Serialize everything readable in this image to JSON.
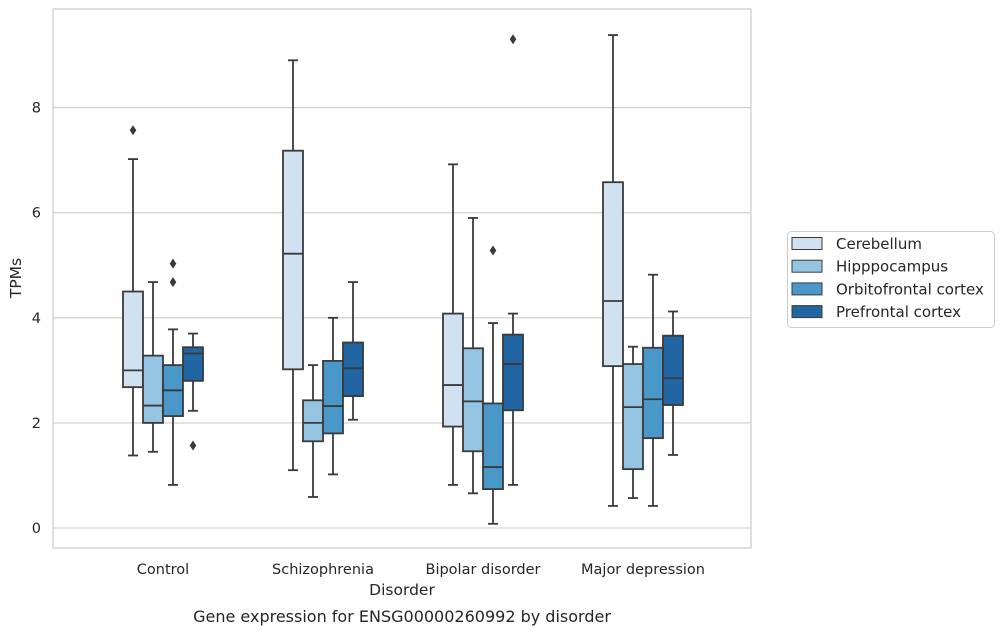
{
  "chart_data": {
    "type": "box",
    "xlabel": "Disorder",
    "ylabel": "TPMs",
    "caption": "Gene expression for ENSG00000260992 by disorder",
    "ylim": [
      -0.35,
      9.9
    ],
    "yticks": [
      0,
      2,
      4,
      6,
      8
    ],
    "grid": "horizontal",
    "legend_position": "right",
    "categories": [
      "Control",
      "Schizophrenia",
      "Bipolar disorder",
      "Major depression"
    ],
    "series": [
      {
        "name": "Cerebellum",
        "color": "#d0e1f2",
        "boxes": [
          {
            "whisker_low": 1.38,
            "q1": 2.68,
            "median": 3.0,
            "q3": 4.5,
            "whisker_high": 7.02,
            "outliers": [
              7.57
            ]
          },
          {
            "whisker_low": 1.1,
            "q1": 3.02,
            "median": 5.22,
            "q3": 7.18,
            "whisker_high": 8.9,
            "outliers": []
          },
          {
            "whisker_low": 0.82,
            "q1": 1.93,
            "median": 2.72,
            "q3": 4.08,
            "whisker_high": 6.92,
            "outliers": []
          },
          {
            "whisker_low": 0.42,
            "q1": 3.08,
            "median": 4.32,
            "q3": 6.58,
            "whisker_high": 9.38,
            "outliers": []
          }
        ]
      },
      {
        "name": "Hipppocampus",
        "color": "#94c4df",
        "boxes": [
          {
            "whisker_low": 1.45,
            "q1": 2.0,
            "median": 2.33,
            "q3": 3.28,
            "whisker_high": 4.68,
            "outliers": []
          },
          {
            "whisker_low": 0.59,
            "q1": 1.65,
            "median": 2.0,
            "q3": 2.43,
            "whisker_high": 3.1,
            "outliers": []
          },
          {
            "whisker_low": 0.66,
            "q1": 1.46,
            "median": 2.41,
            "q3": 3.42,
            "whisker_high": 5.9,
            "outliers": []
          },
          {
            "whisker_low": 0.57,
            "q1": 1.12,
            "median": 2.3,
            "q3": 3.12,
            "whisker_high": 3.45,
            "outliers": []
          }
        ]
      },
      {
        "name": "Orbitofrontal cortex",
        "color": "#4a98c9",
        "boxes": [
          {
            "whisker_low": 0.82,
            "q1": 2.13,
            "median": 2.62,
            "q3": 3.1,
            "whisker_high": 3.78,
            "outliers": [
              4.68,
              5.03
            ]
          },
          {
            "whisker_low": 1.02,
            "q1": 1.8,
            "median": 2.32,
            "q3": 3.18,
            "whisker_high": 4.0,
            "outliers": []
          },
          {
            "whisker_low": 0.08,
            "q1": 0.74,
            "median": 1.16,
            "q3": 2.37,
            "whisker_high": 3.9,
            "outliers": [
              5.28
            ]
          },
          {
            "whisker_low": 0.42,
            "q1": 1.71,
            "median": 2.45,
            "q3": 3.43,
            "whisker_high": 4.82,
            "outliers": []
          }
        ]
      },
      {
        "name": "Prefrontal cortex",
        "color": "#2265a3",
        "boxes": [
          {
            "whisker_low": 2.23,
            "q1": 2.8,
            "median": 3.32,
            "q3": 3.44,
            "whisker_high": 3.7,
            "outliers": [
              1.57
            ]
          },
          {
            "whisker_low": 2.06,
            "q1": 2.51,
            "median": 3.04,
            "q3": 3.53,
            "whisker_high": 4.68,
            "outliers": []
          },
          {
            "whisker_low": 0.82,
            "q1": 2.24,
            "median": 3.12,
            "q3": 3.68,
            "whisker_high": 4.08,
            "outliers": [
              9.3
            ]
          },
          {
            "whisker_low": 1.39,
            "q1": 2.34,
            "median": 2.85,
            "q3": 3.66,
            "whisker_high": 4.12,
            "outliers": []
          }
        ]
      }
    ]
  }
}
